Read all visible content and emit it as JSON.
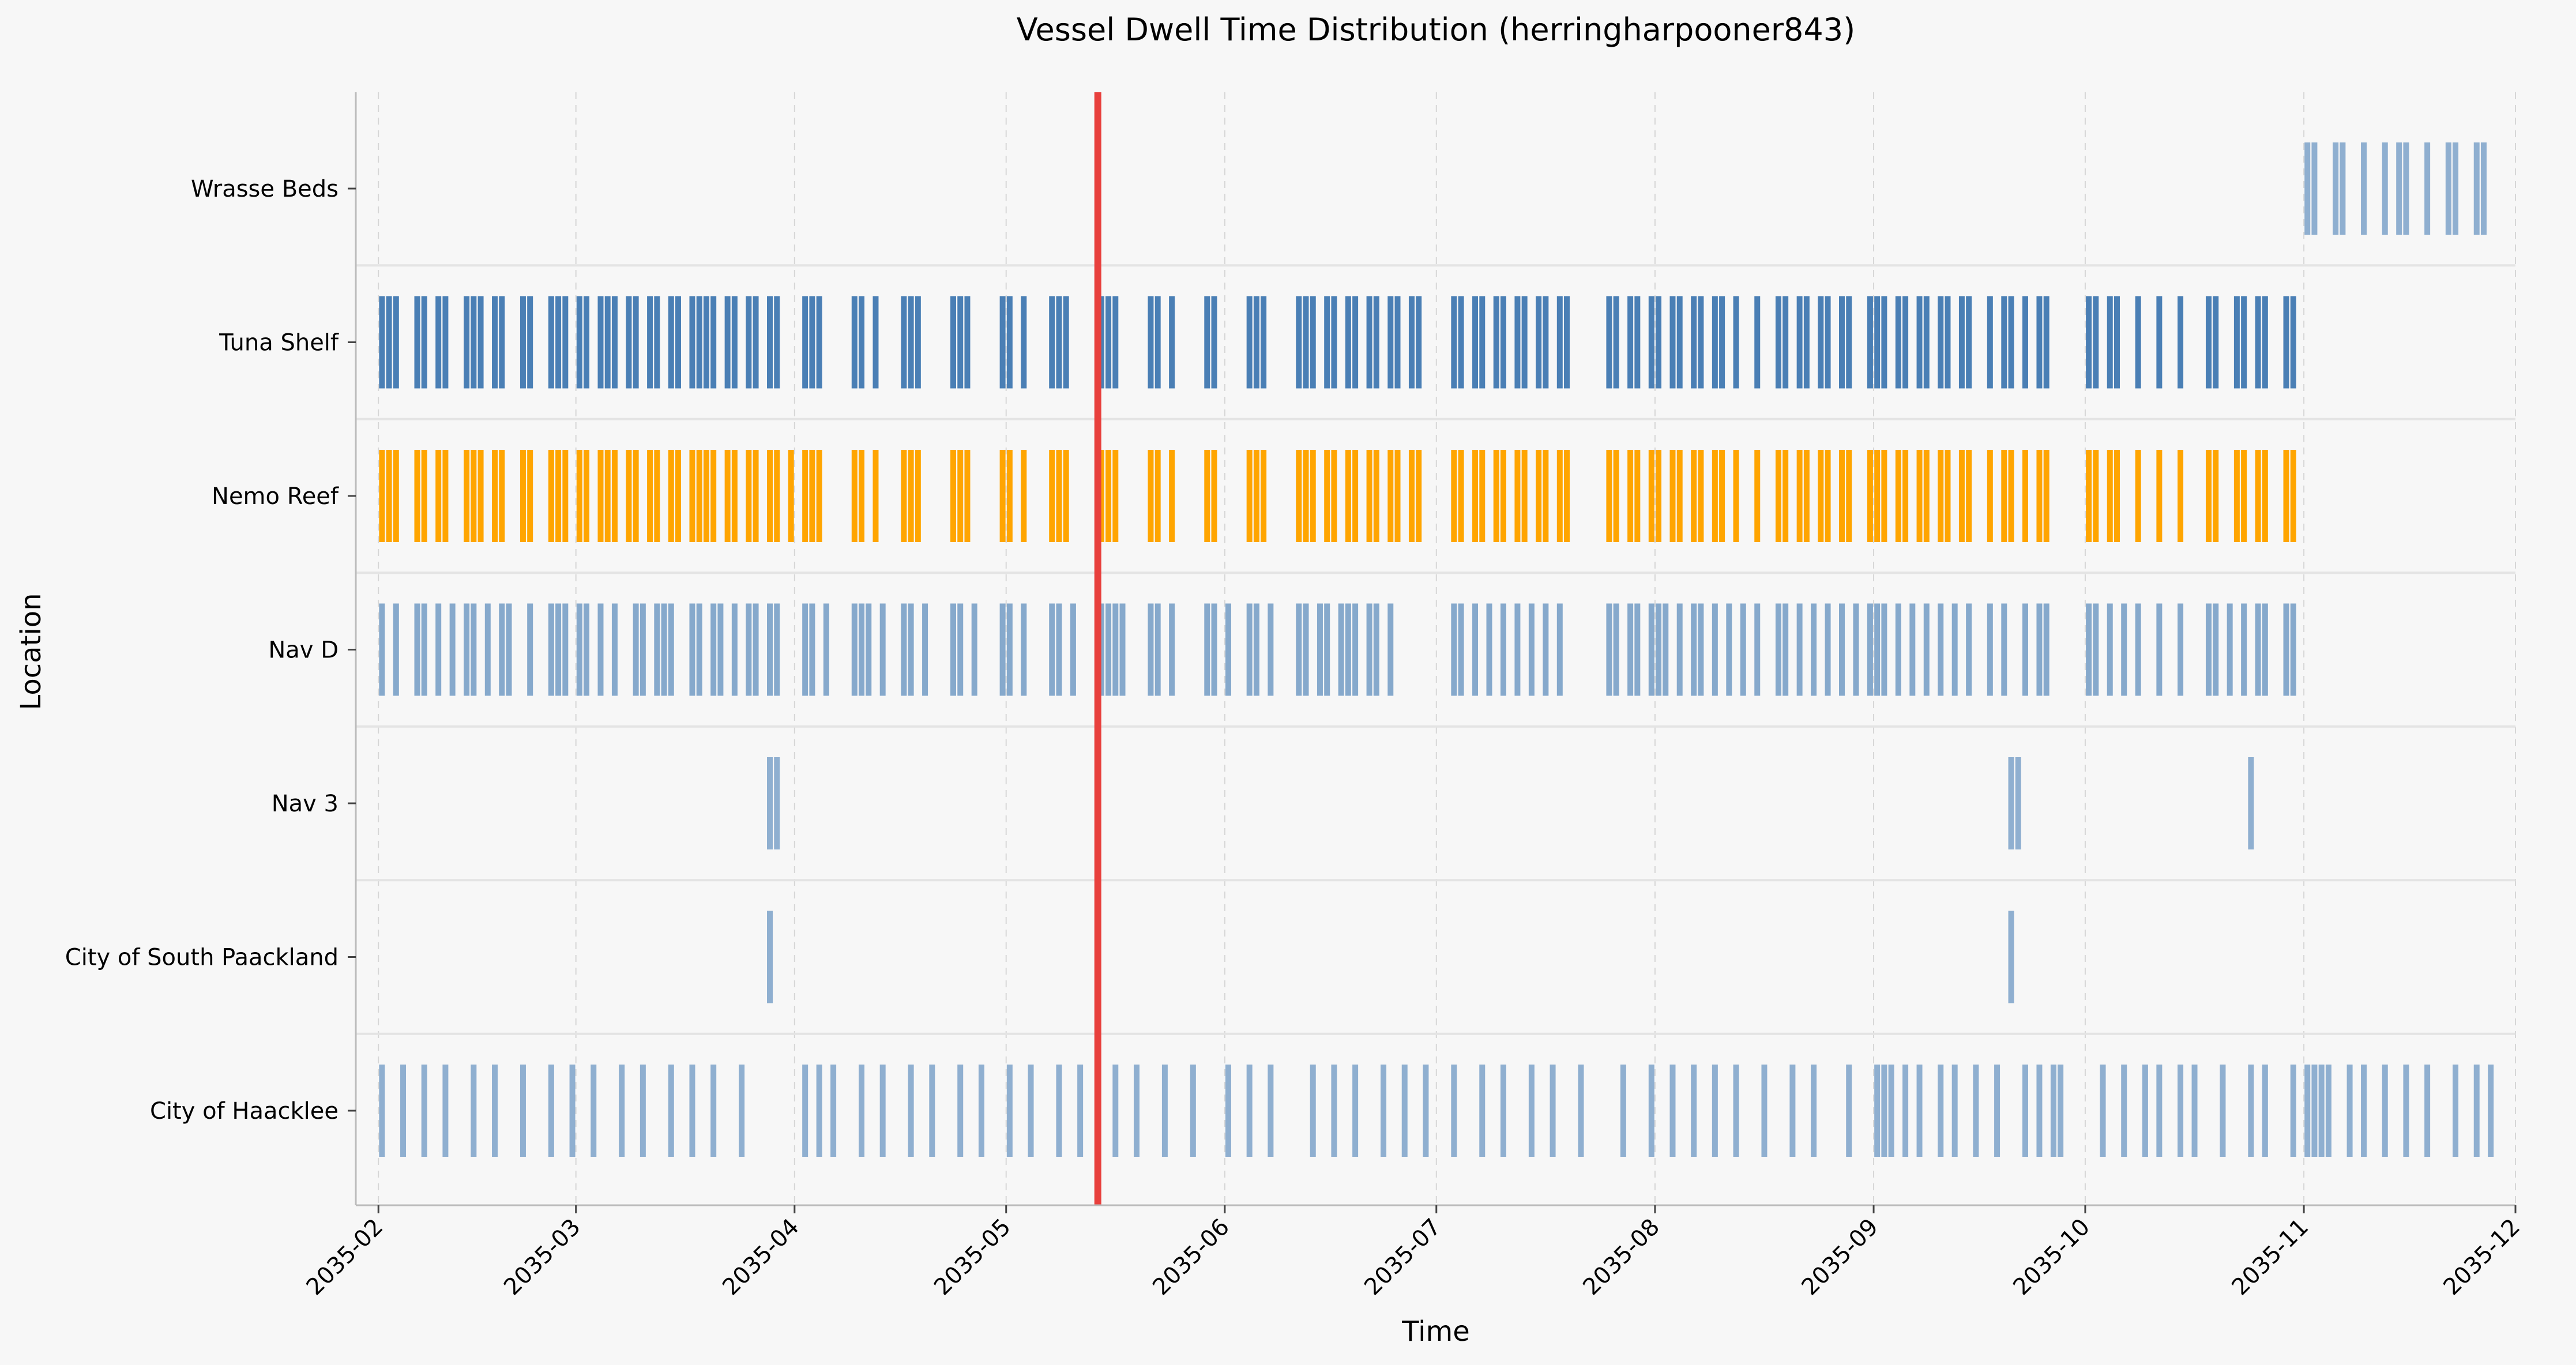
{
  "chart_data": {
    "type": "timeline",
    "title": "Vessel Dwell Time Distribution (herringharpooner843)",
    "xlabel": "Time",
    "ylabel": "Location",
    "x_ticks": [
      "2035-02",
      "2035-03",
      "2035-04",
      "2035-05",
      "2035-06",
      "2035-07",
      "2035-08",
      "2035-09",
      "2035-10",
      "2035-11",
      "2035-12"
    ],
    "x_range": [
      "2035-01-31",
      "2035-12-01"
    ],
    "categories": [
      "Wrasse Beds",
      "Tuna Shelf",
      "Nemo Reef",
      "Nav D",
      "Nav 3",
      "City of South Paackland",
      "City of Haacklee"
    ],
    "current_time_marker": "2035-05-14",
    "grid": "x dashed",
    "colors": {
      "default": "#4a7fb5",
      "highlight": "#ffa500",
      "marker": "#e8403d",
      "background": "#f7f7f7"
    },
    "series": [
      {
        "location": "Wrasse Beds",
        "color": "#4a7fb5",
        "opacity": 0.6,
        "events": [
          "2035-11-01",
          "2035-11-02",
          "2035-11-05",
          "2035-11-06",
          "2035-11-09",
          "2035-11-12",
          "2035-11-14",
          "2035-11-15",
          "2035-11-18",
          "2035-11-21",
          "2035-11-22",
          "2035-11-25",
          "2035-11-26"
        ]
      },
      {
        "location": "Tuna Shelf",
        "color": "#4a7fb5",
        "opacity": 1.0,
        "events": [
          "2035-02-01",
          "2035-02-02",
          "2035-02-03",
          "2035-02-06",
          "2035-02-07",
          "2035-02-09",
          "2035-02-10",
          "2035-02-13",
          "2035-02-14",
          "2035-02-15",
          "2035-02-17",
          "2035-02-18",
          "2035-02-21",
          "2035-02-22",
          "2035-02-25",
          "2035-02-26",
          "2035-02-27",
          "2035-03-01",
          "2035-03-02",
          "2035-03-04",
          "2035-03-05",
          "2035-03-06",
          "2035-03-08",
          "2035-03-09",
          "2035-03-11",
          "2035-03-12",
          "2035-03-14",
          "2035-03-15",
          "2035-03-17",
          "2035-03-18",
          "2035-03-19",
          "2035-03-20",
          "2035-03-22",
          "2035-03-23",
          "2035-03-25",
          "2035-03-26",
          "2035-03-28",
          "2035-03-29",
          "2035-04-02",
          "2035-04-03",
          "2035-04-04",
          "2035-04-09",
          "2035-04-10",
          "2035-04-12",
          "2035-04-16",
          "2035-04-17",
          "2035-04-18",
          "2035-04-23",
          "2035-04-24",
          "2035-04-25",
          "2035-04-30",
          "2035-05-01",
          "2035-05-03",
          "2035-05-07",
          "2035-05-08",
          "2035-05-09",
          "2035-05-14",
          "2035-05-15",
          "2035-05-16",
          "2035-05-21",
          "2035-05-22",
          "2035-05-24",
          "2035-05-29",
          "2035-05-30",
          "2035-06-04",
          "2035-06-05",
          "2035-06-06",
          "2035-06-11",
          "2035-06-12",
          "2035-06-13",
          "2035-06-15",
          "2035-06-16",
          "2035-06-18",
          "2035-06-19",
          "2035-06-21",
          "2035-06-22",
          "2035-06-24",
          "2035-06-25",
          "2035-06-27",
          "2035-06-28",
          "2035-07-03",
          "2035-07-04",
          "2035-07-06",
          "2035-07-07",
          "2035-07-09",
          "2035-07-10",
          "2035-07-12",
          "2035-07-13",
          "2035-07-15",
          "2035-07-16",
          "2035-07-18",
          "2035-07-19",
          "2035-07-25",
          "2035-07-26",
          "2035-07-28",
          "2035-07-29",
          "2035-07-31",
          "2035-08-01",
          "2035-08-03",
          "2035-08-04",
          "2035-08-06",
          "2035-08-07",
          "2035-08-09",
          "2035-08-10",
          "2035-08-12",
          "2035-08-15",
          "2035-08-18",
          "2035-08-19",
          "2035-08-21",
          "2035-08-22",
          "2035-08-24",
          "2035-08-25",
          "2035-08-27",
          "2035-08-28",
          "2035-08-31",
          "2035-09-01",
          "2035-09-02",
          "2035-09-04",
          "2035-09-05",
          "2035-09-07",
          "2035-09-08",
          "2035-09-10",
          "2035-09-11",
          "2035-09-13",
          "2035-09-14",
          "2035-09-17",
          "2035-09-19",
          "2035-09-20",
          "2035-09-22",
          "2035-09-24",
          "2035-09-25",
          "2035-10-01",
          "2035-10-02",
          "2035-10-04",
          "2035-10-05",
          "2035-10-08",
          "2035-10-11",
          "2035-10-14",
          "2035-10-18",
          "2035-10-19",
          "2035-10-22",
          "2035-10-23",
          "2035-10-25",
          "2035-10-26",
          "2035-10-29",
          "2035-10-30"
        ]
      },
      {
        "location": "Nemo Reef",
        "color": "#ffa500",
        "opacity": 1.0,
        "events": [
          "2035-02-01",
          "2035-02-02",
          "2035-02-03",
          "2035-02-06",
          "2035-02-07",
          "2035-02-09",
          "2035-02-10",
          "2035-02-13",
          "2035-02-14",
          "2035-02-15",
          "2035-02-17",
          "2035-02-18",
          "2035-02-21",
          "2035-02-22",
          "2035-02-25",
          "2035-02-26",
          "2035-02-27",
          "2035-03-01",
          "2035-03-02",
          "2035-03-04",
          "2035-03-05",
          "2035-03-06",
          "2035-03-08",
          "2035-03-09",
          "2035-03-11",
          "2035-03-12",
          "2035-03-14",
          "2035-03-15",
          "2035-03-17",
          "2035-03-18",
          "2035-03-19",
          "2035-03-20",
          "2035-03-22",
          "2035-03-23",
          "2035-03-25",
          "2035-03-26",
          "2035-03-28",
          "2035-03-29",
          "2035-03-31",
          "2035-04-02",
          "2035-04-03",
          "2035-04-04",
          "2035-04-09",
          "2035-04-10",
          "2035-04-12",
          "2035-04-16",
          "2035-04-17",
          "2035-04-18",
          "2035-04-23",
          "2035-04-24",
          "2035-04-25",
          "2035-04-30",
          "2035-05-01",
          "2035-05-03",
          "2035-05-07",
          "2035-05-08",
          "2035-05-09",
          "2035-05-14",
          "2035-05-15",
          "2035-05-16",
          "2035-05-21",
          "2035-05-22",
          "2035-05-24",
          "2035-05-29",
          "2035-05-30",
          "2035-06-04",
          "2035-06-05",
          "2035-06-06",
          "2035-06-11",
          "2035-06-12",
          "2035-06-13",
          "2035-06-15",
          "2035-06-16",
          "2035-06-18",
          "2035-06-19",
          "2035-06-21",
          "2035-06-22",
          "2035-06-24",
          "2035-06-25",
          "2035-06-27",
          "2035-06-28",
          "2035-07-03",
          "2035-07-04",
          "2035-07-06",
          "2035-07-07",
          "2035-07-09",
          "2035-07-10",
          "2035-07-12",
          "2035-07-13",
          "2035-07-15",
          "2035-07-16",
          "2035-07-18",
          "2035-07-19",
          "2035-07-25",
          "2035-07-26",
          "2035-07-28",
          "2035-07-29",
          "2035-07-31",
          "2035-08-01",
          "2035-08-03",
          "2035-08-04",
          "2035-08-06",
          "2035-08-07",
          "2035-08-09",
          "2035-08-10",
          "2035-08-12",
          "2035-08-15",
          "2035-08-18",
          "2035-08-19",
          "2035-08-21",
          "2035-08-22",
          "2035-08-24",
          "2035-08-25",
          "2035-08-27",
          "2035-08-28",
          "2035-08-31",
          "2035-09-01",
          "2035-09-02",
          "2035-09-04",
          "2035-09-05",
          "2035-09-07",
          "2035-09-08",
          "2035-09-10",
          "2035-09-11",
          "2035-09-13",
          "2035-09-14",
          "2035-09-17",
          "2035-09-19",
          "2035-09-20",
          "2035-09-22",
          "2035-09-24",
          "2035-09-25",
          "2035-10-01",
          "2035-10-02",
          "2035-10-04",
          "2035-10-05",
          "2035-10-08",
          "2035-10-11",
          "2035-10-14",
          "2035-10-18",
          "2035-10-19",
          "2035-10-22",
          "2035-10-23",
          "2035-10-25",
          "2035-10-26",
          "2035-10-29",
          "2035-10-30"
        ]
      },
      {
        "location": "Nav D",
        "color": "#4a7fb5",
        "opacity": 0.65,
        "events": [
          "2035-02-01",
          "2035-02-03",
          "2035-02-06",
          "2035-02-07",
          "2035-02-09",
          "2035-02-11",
          "2035-02-13",
          "2035-02-14",
          "2035-02-16",
          "2035-02-18",
          "2035-02-19",
          "2035-02-22",
          "2035-02-25",
          "2035-02-26",
          "2035-02-27",
          "2035-03-01",
          "2035-03-02",
          "2035-03-04",
          "2035-03-06",
          "2035-03-09",
          "2035-03-10",
          "2035-03-12",
          "2035-03-13",
          "2035-03-14",
          "2035-03-17",
          "2035-03-18",
          "2035-03-20",
          "2035-03-21",
          "2035-03-23",
          "2035-03-25",
          "2035-03-26",
          "2035-03-28",
          "2035-03-29",
          "2035-04-02",
          "2035-04-03",
          "2035-04-05",
          "2035-04-09",
          "2035-04-10",
          "2035-04-11",
          "2035-04-13",
          "2035-04-16",
          "2035-04-17",
          "2035-04-19",
          "2035-04-23",
          "2035-04-24",
          "2035-04-26",
          "2035-04-30",
          "2035-05-01",
          "2035-05-03",
          "2035-05-07",
          "2035-05-08",
          "2035-05-10",
          "2035-05-14",
          "2035-05-15",
          "2035-05-16",
          "2035-05-17",
          "2035-05-21",
          "2035-05-22",
          "2035-05-24",
          "2035-05-29",
          "2035-05-30",
          "2035-06-01",
          "2035-06-04",
          "2035-06-05",
          "2035-06-07",
          "2035-06-11",
          "2035-06-12",
          "2035-06-14",
          "2035-06-15",
          "2035-06-17",
          "2035-06-18",
          "2035-06-19",
          "2035-06-21",
          "2035-06-22",
          "2035-06-24",
          "2035-07-03",
          "2035-07-04",
          "2035-07-06",
          "2035-07-08",
          "2035-07-10",
          "2035-07-12",
          "2035-07-14",
          "2035-07-16",
          "2035-07-18",
          "2035-07-25",
          "2035-07-26",
          "2035-07-28",
          "2035-07-29",
          "2035-07-31",
          "2035-08-01",
          "2035-08-02",
          "2035-08-04",
          "2035-08-06",
          "2035-08-07",
          "2035-08-09",
          "2035-08-11",
          "2035-08-13",
          "2035-08-15",
          "2035-08-18",
          "2035-08-19",
          "2035-08-21",
          "2035-08-23",
          "2035-08-25",
          "2035-08-27",
          "2035-08-29",
          "2035-08-31",
          "2035-09-01",
          "2035-09-02",
          "2035-09-04",
          "2035-09-06",
          "2035-09-08",
          "2035-09-10",
          "2035-09-12",
          "2035-09-14",
          "2035-09-17",
          "2035-09-19",
          "2035-09-22",
          "2035-09-24",
          "2035-09-25",
          "2035-10-01",
          "2035-10-02",
          "2035-10-04",
          "2035-10-06",
          "2035-10-08",
          "2035-10-11",
          "2035-10-14",
          "2035-10-18",
          "2035-10-19",
          "2035-10-21",
          "2035-10-23",
          "2035-10-25",
          "2035-10-26",
          "2035-10-29",
          "2035-10-30"
        ]
      },
      {
        "location": "Nav 3",
        "color": "#4a7fb5",
        "opacity": 0.6,
        "events": [
          "2035-03-28",
          "2035-03-29",
          "2035-09-20",
          "2035-09-21",
          "2035-10-24"
        ]
      },
      {
        "location": "City of South Paackland",
        "color": "#4a7fb5",
        "opacity": 0.6,
        "events": [
          "2035-03-28",
          "2035-09-20"
        ]
      },
      {
        "location": "City of Haacklee",
        "color": "#4a7fb5",
        "opacity": 0.6,
        "events": [
          "2035-02-01",
          "2035-02-04",
          "2035-02-07",
          "2035-02-10",
          "2035-02-14",
          "2035-02-17",
          "2035-02-21",
          "2035-02-25",
          "2035-02-28",
          "2035-03-03",
          "2035-03-07",
          "2035-03-10",
          "2035-03-14",
          "2035-03-17",
          "2035-03-20",
          "2035-03-24",
          "2035-04-02",
          "2035-04-04",
          "2035-04-06",
          "2035-04-10",
          "2035-04-13",
          "2035-04-17",
          "2035-04-20",
          "2035-04-24",
          "2035-04-27",
          "2035-05-01",
          "2035-05-04",
          "2035-05-08",
          "2035-05-11",
          "2035-05-16",
          "2035-05-19",
          "2035-05-23",
          "2035-05-27",
          "2035-06-01",
          "2035-06-04",
          "2035-06-07",
          "2035-06-13",
          "2035-06-16",
          "2035-06-19",
          "2035-06-23",
          "2035-06-26",
          "2035-06-29",
          "2035-07-03",
          "2035-07-07",
          "2035-07-10",
          "2035-07-14",
          "2035-07-17",
          "2035-07-21",
          "2035-07-27",
          "2035-07-31",
          "2035-08-03",
          "2035-08-06",
          "2035-08-09",
          "2035-08-12",
          "2035-08-16",
          "2035-08-20",
          "2035-08-23",
          "2035-08-28",
          "2035-09-01",
          "2035-09-02",
          "2035-09-03",
          "2035-09-05",
          "2035-09-07",
          "2035-09-10",
          "2035-09-12",
          "2035-09-15",
          "2035-09-18",
          "2035-09-22",
          "2035-09-24",
          "2035-09-26",
          "2035-09-27",
          "2035-10-03",
          "2035-10-06",
          "2035-10-09",
          "2035-10-11",
          "2035-10-14",
          "2035-10-16",
          "2035-10-20",
          "2035-10-24",
          "2035-10-26",
          "2035-10-30",
          "2035-11-01",
          "2035-11-02",
          "2035-11-03",
          "2035-11-04",
          "2035-11-07",
          "2035-11-09",
          "2035-11-12",
          "2035-11-15",
          "2035-11-18",
          "2035-11-22",
          "2035-11-25",
          "2035-11-27"
        ]
      }
    ]
  }
}
